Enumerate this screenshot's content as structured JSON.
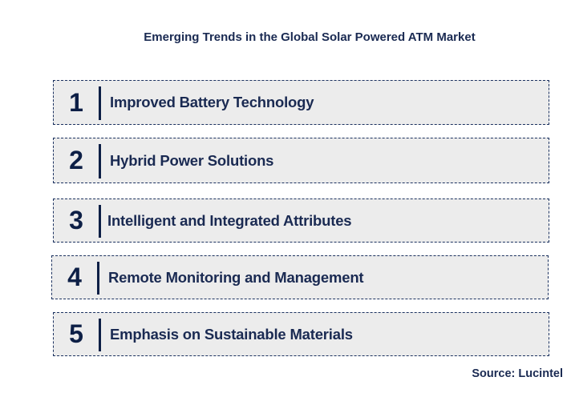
{
  "title": "Emerging Trends in the Global Solar Powered ATM Market",
  "trends": [
    {
      "number": "1",
      "label": "Improved Battery Technology"
    },
    {
      "number": "2",
      "label": "Hybrid Power Solutions"
    },
    {
      "number": "3",
      "label": "Intelligent and Integrated Attributes"
    },
    {
      "number": "4",
      "label": "Remote Monitoring and Management"
    },
    {
      "number": "5",
      "label": "Emphasis on Sustainable Materials"
    }
  ],
  "source": "Source: Lucintel",
  "colors": {
    "text": "#1a2a52",
    "number": "#0d1f46",
    "box_fill": "#ececec",
    "box_border": "#1c3260"
  }
}
